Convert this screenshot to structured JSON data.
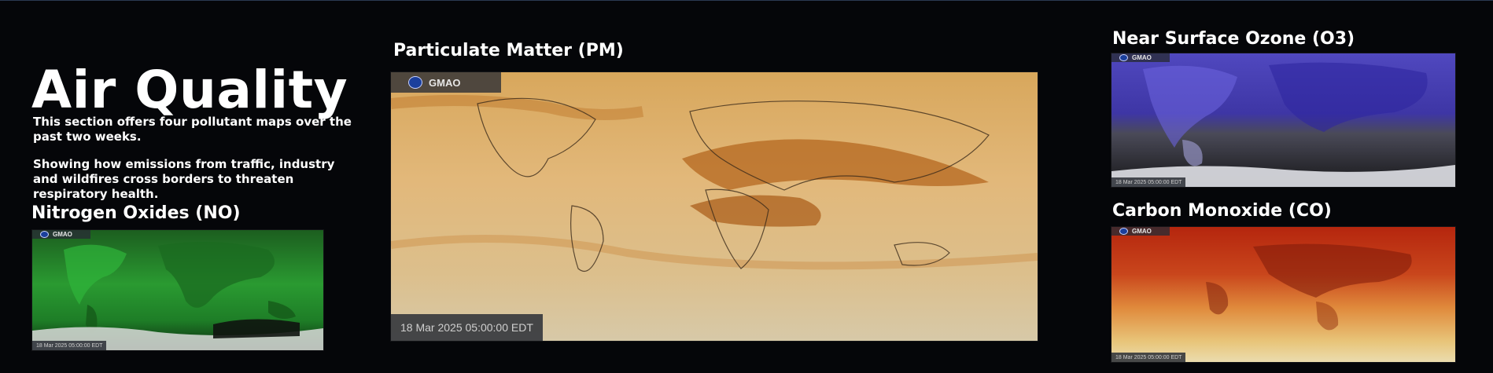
{
  "page": {
    "title": "Air Quality",
    "description_1": "This section offers four pollutant maps over the past two weeks.",
    "description_2": "Showing how emissions from traffic, industry and wildfires cross borders to threaten respiratory health."
  },
  "panels": {
    "no": {
      "title": "Nitrogen Oxides (NO)",
      "badge": "GMAO",
      "timestamp": "18 Mar 2025 05:00:00 EDT"
    },
    "pm": {
      "title": "Particulate Matter (PM)",
      "badge": "GMAO",
      "timestamp": "18 Mar 2025 05:00:00 EDT"
    },
    "o3": {
      "title": "Near Surface Ozone (O3)",
      "badge": "GMAO",
      "timestamp": "18 Mar 2025 05:00:00 EDT"
    },
    "co": {
      "title": "Carbon Monoxide (CO)",
      "badge": "GMAO",
      "timestamp": "18 Mar 2025 05:00:00 EDT"
    }
  },
  "colors": {
    "background": "#050609",
    "no_map": "#1f8c27",
    "pm_map": "#d69a4e",
    "o3_map": "#4f46b8",
    "co_map": "#c5371a"
  },
  "icons": {
    "agency_logo": "nasa-logo-icon"
  }
}
